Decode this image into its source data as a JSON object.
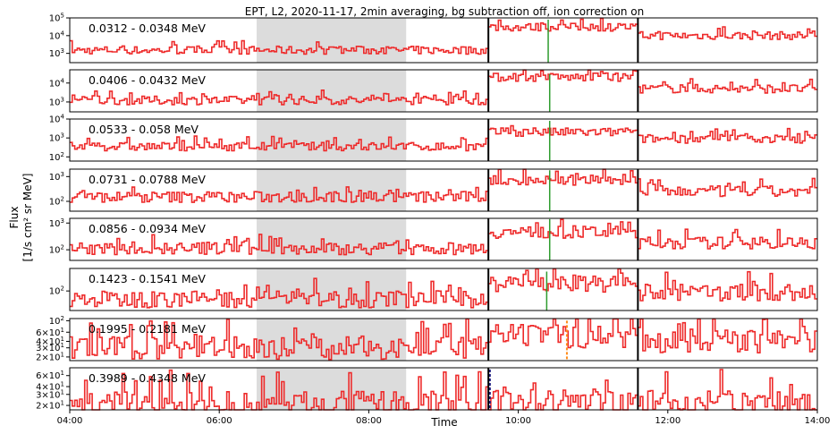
{
  "chart_data": {
    "type": "line",
    "title": "EPT, L2, 2020-11-17, 2min averaging, bg subtraction off, ion correction on",
    "xlabel": "Time",
    "ylabel_lines": [
      "Flux",
      "[1/s cm² sr MeV]"
    ],
    "x_range_hours": [
      4,
      14
    ],
    "x_ticks": [
      {
        "hour": 4,
        "label": "04:00"
      },
      {
        "hour": 6,
        "label": "06:00"
      },
      {
        "hour": 8,
        "label": "08:00"
      },
      {
        "hour": 10,
        "label": "10:00"
      },
      {
        "hour": 12,
        "label": "12:00"
      },
      {
        "hour": 14,
        "label": "14:00"
      }
    ],
    "shaded_interval_hours": [
      6.5,
      8.5
    ],
    "vertical_lines_hours": [
      9.6,
      11.6
    ],
    "colors": {
      "series": "#ee2a2a",
      "green": "#2e9c2e",
      "shade": "#dcdcdc",
      "orange": "#ff8c1a",
      "navy": "#1a1a80"
    },
    "panels": [
      {
        "energy": "0.0312 - 0.0348 MeV",
        "log": true,
        "ylim": [
          300,
          100000
        ],
        "ticks": [
          {
            "v": 1000,
            "t": "10^3"
          },
          {
            "v": 10000,
            "t": "10^4"
          },
          {
            "v": 100000,
            "t": "10^5"
          }
        ],
        "base": 1500,
        "event": 30000,
        "decay": 10000,
        "marker": {
          "type": "green",
          "hour": 10.4,
          "from": 300,
          "to": 80000
        }
      },
      {
        "energy": "0.0406 - 0.0432 MeV",
        "log": true,
        "ylim": [
          300,
          50000
        ],
        "ticks": [
          {
            "v": 1000,
            "t": "10^3"
          },
          {
            "v": 10000,
            "t": "10^4"
          }
        ],
        "base": 1200,
        "event": 20000,
        "decay": 5000,
        "marker": {
          "type": "green",
          "hour": 10.42,
          "from": 300,
          "to": 30000
        }
      },
      {
        "energy": "0.0533 - 0.058 MeV",
        "log": true,
        "ylim": [
          60,
          10000
        ],
        "ticks": [
          {
            "v": 100,
            "t": "10^2"
          },
          {
            "v": 1000,
            "t": "10^3"
          },
          {
            "v": 10000,
            "t": "10^4"
          }
        ],
        "base": 350,
        "event": 2000,
        "decay": 900,
        "marker": {
          "type": "green",
          "hour": 10.42,
          "from": 60,
          "to": 8000
        }
      },
      {
        "energy": "0.0731 - 0.0788 MeV",
        "log": true,
        "ylim": [
          40,
          2000
        ],
        "ticks": [
          {
            "v": 100,
            "t": "10^2"
          },
          {
            "v": 1000,
            "t": "10^3"
          }
        ],
        "base": 150,
        "event": 700,
        "decay": 250,
        "marker": {
          "type": "green",
          "hour": 10.42,
          "from": 40,
          "to": 1800
        }
      },
      {
        "energy": "0.0856 - 0.0934 MeV",
        "log": true,
        "ylim": [
          40,
          1500
        ],
        "ticks": [
          {
            "v": 100,
            "t": "10^2"
          },
          {
            "v": 1000,
            "t": "10^3"
          }
        ],
        "base": 110,
        "event": 450,
        "decay": 180,
        "marker": {
          "type": "green",
          "hour": 10.42,
          "from": 40,
          "to": 1400
        }
      },
      {
        "energy": "0.1423 - 0.1541 MeV",
        "log": true,
        "ylim": [
          30,
          400
        ],
        "ticks": [
          {
            "v": 100,
            "t": "10^2"
          }
        ],
        "base": 60,
        "event": 150,
        "decay": 90,
        "marker": {
          "type": "green",
          "hour": 10.38,
          "from": 30,
          "to": 330
        }
      },
      {
        "energy": "0.1995 - 0.2181 MeV",
        "log": true,
        "ylim": [
          17,
          110
        ],
        "ticks": [
          {
            "v": 20,
            "t": "2x10^1"
          },
          {
            "v": 30,
            "t": "3x10^1"
          },
          {
            "v": 40,
            "t": "4x10^1"
          },
          {
            "v": 60,
            "t": "6x10^1"
          },
          {
            "v": 100,
            "t": "10^2"
          }
        ],
        "base": 30,
        "event": 50,
        "decay": 40,
        "marker": {
          "type": "orange",
          "hour": 10.65,
          "from": 17,
          "to": 100
        }
      },
      {
        "energy": "0.3989 - 0.4348 MeV",
        "log": true,
        "ylim": [
          17,
          80
        ],
        "ticks": [
          {
            "v": 20,
            "t": "2x10^1"
          },
          {
            "v": 30,
            "t": "3x10^1"
          },
          {
            "v": 40,
            "t": "4x10^1"
          },
          {
            "v": 60,
            "t": "6x10^1"
          }
        ],
        "base": 20,
        "event": 22,
        "decay": 21,
        "marker": {
          "type": "navy",
          "hour": 9.62,
          "from": 17,
          "to": 75
        }
      }
    ]
  }
}
